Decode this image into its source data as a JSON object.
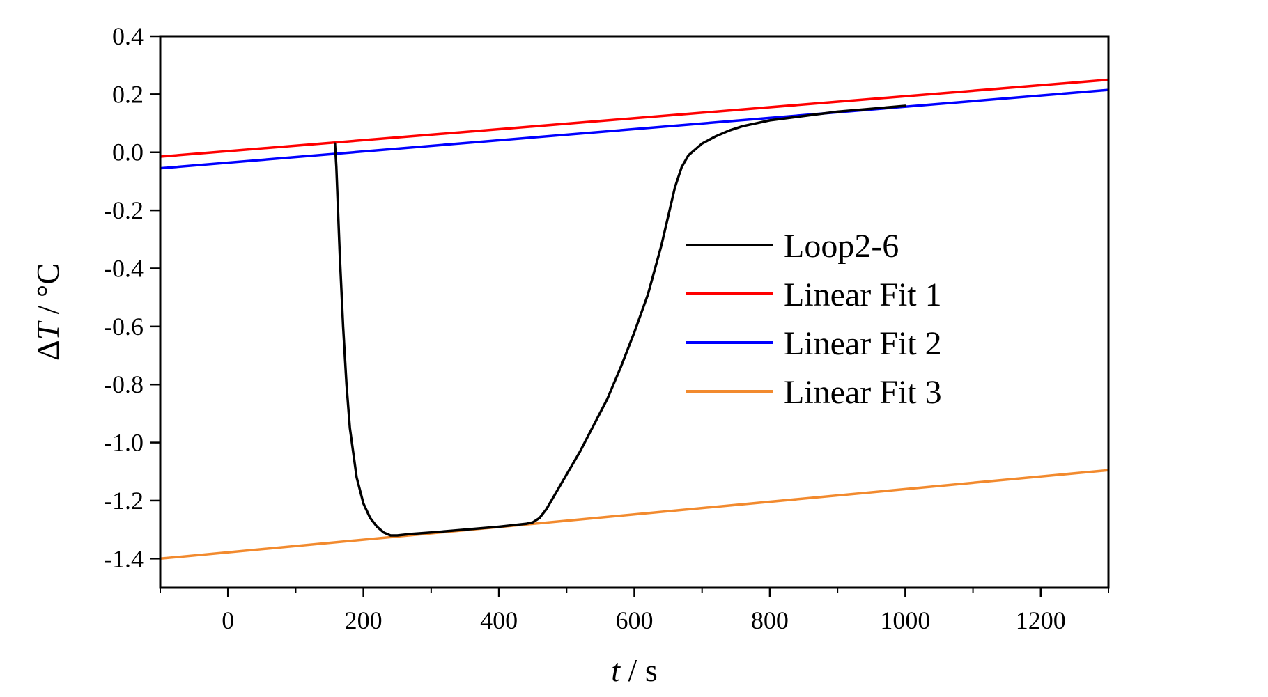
{
  "chart_data": {
    "type": "line",
    "title": "",
    "xlabel": {
      "var": "t",
      "unit": " / s"
    },
    "ylabel": {
      "var": "T",
      "prefix": "Δ",
      "unit": " / °C"
    },
    "xlim": [
      -100,
      1300
    ],
    "ylim": [
      -1.5,
      0.4
    ],
    "x_ticks": [
      0,
      200,
      400,
      600,
      800,
      1000,
      1200
    ],
    "x_tick_labels": [
      "0",
      "200",
      "400",
      "600",
      "800",
      "1000",
      "1200"
    ],
    "y_ticks": [
      0.4,
      0.2,
      0.0,
      -0.2,
      -0.4,
      -0.6,
      -0.8,
      -1.0,
      -1.2,
      -1.4
    ],
    "y_tick_labels": [
      "0.4",
      "0.2",
      "0.0",
      "-0.2",
      "-0.4",
      "-0.6",
      "-0.8",
      "-1.0",
      "-1.2",
      "-1.4"
    ],
    "grid": false,
    "legend_position": "center-right",
    "series": [
      {
        "name": "Loop2-6",
        "color": "#000000",
        "x": [
          158,
          160,
          165,
          170,
          175,
          180,
          190,
          200,
          210,
          220,
          230,
          240,
          250,
          270,
          300,
          350,
          400,
          440,
          450,
          460,
          470,
          480,
          500,
          520,
          540,
          560,
          580,
          600,
          620,
          640,
          650,
          660,
          670,
          680,
          700,
          720,
          740,
          760,
          780,
          800,
          850,
          900,
          950,
          1000
        ],
        "y": [
          0.03,
          -0.05,
          -0.35,
          -0.6,
          -0.8,
          -0.95,
          -1.12,
          -1.21,
          -1.26,
          -1.29,
          -1.31,
          -1.32,
          -1.32,
          -1.315,
          -1.31,
          -1.3,
          -1.29,
          -1.28,
          -1.275,
          -1.26,
          -1.23,
          -1.19,
          -1.11,
          -1.03,
          -0.94,
          -0.85,
          -0.74,
          -0.62,
          -0.49,
          -0.32,
          -0.22,
          -0.12,
          -0.05,
          -0.01,
          0.03,
          0.055,
          0.075,
          0.09,
          0.1,
          0.11,
          0.125,
          0.14,
          0.15,
          0.16
        ]
      },
      {
        "name": "Linear Fit 1",
        "color": "#ff0000",
        "x": [
          -100,
          1300
        ],
        "y": [
          -0.015,
          0.25
        ]
      },
      {
        "name": "Linear Fit 2",
        "color": "#0000ff",
        "x": [
          -100,
          1300
        ],
        "y": [
          -0.055,
          0.215
        ]
      },
      {
        "name": "Linear Fit 3",
        "color": "#f28a2e",
        "x": [
          -100,
          1300
        ],
        "y": [
          -1.4,
          -1.095
        ]
      }
    ]
  }
}
